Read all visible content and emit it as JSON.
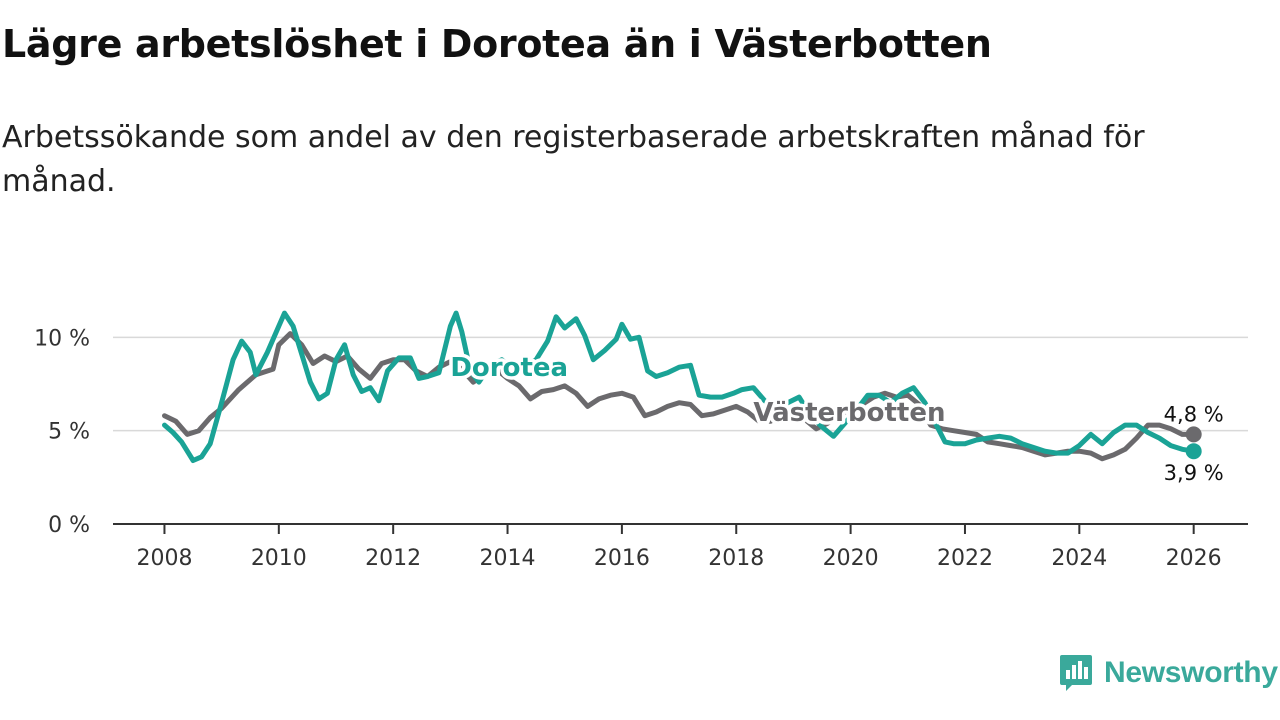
{
  "title": "Lägre arbetslöshet i Dorotea än i Västerbotten",
  "subtitle": "Arbetssökande som andel av den registerbaserade arbetskraften månad för månad.",
  "brand": {
    "name": "Newsworthy",
    "icon": "newsworthy-logo-icon",
    "color": "#3aa99b"
  },
  "chart_data": {
    "type": "line",
    "title": "Lägre arbetslöshet i Dorotea än i Västerbotten",
    "xlabel": "",
    "ylabel": "",
    "xlim": [
      2007.1,
      2026.95
    ],
    "ylim": [
      0,
      12
    ],
    "x_ticks": [
      2008,
      2010,
      2012,
      2014,
      2016,
      2018,
      2020,
      2022,
      2024,
      2026
    ],
    "y_ticks": [
      {
        "value": 0,
        "label": "0 %"
      },
      {
        "value": 5,
        "label": "5 %"
      },
      {
        "value": 10,
        "label": "10 %"
      }
    ],
    "grid": "horizontal",
    "end_labels": {
      "top": "4,8 %",
      "bottom": "3,9 %"
    },
    "series": [
      {
        "name": "Västerbotten",
        "color": "#6b6a6d",
        "points": [
          [
            2008.0,
            5.8
          ],
          [
            2008.2,
            5.5
          ],
          [
            2008.4,
            4.8
          ],
          [
            2008.6,
            5.0
          ],
          [
            2008.8,
            5.7
          ],
          [
            2009.0,
            6.2
          ],
          [
            2009.3,
            7.2
          ],
          [
            2009.6,
            8.0
          ],
          [
            2009.9,
            8.3
          ],
          [
            2010.0,
            9.6
          ],
          [
            2010.2,
            10.2
          ],
          [
            2010.4,
            9.6
          ],
          [
            2010.6,
            8.6
          ],
          [
            2010.8,
            9.0
          ],
          [
            2011.0,
            8.7
          ],
          [
            2011.2,
            9.0
          ],
          [
            2011.4,
            8.3
          ],
          [
            2011.6,
            7.8
          ],
          [
            2011.8,
            8.6
          ],
          [
            2012.0,
            8.8
          ],
          [
            2012.2,
            8.8
          ],
          [
            2012.4,
            8.2
          ],
          [
            2012.6,
            7.9
          ],
          [
            2012.8,
            8.4
          ],
          [
            2013.0,
            8.7
          ],
          [
            2013.2,
            8.3
          ],
          [
            2013.4,
            7.6
          ],
          [
            2013.6,
            8.0
          ],
          [
            2013.8,
            8.3
          ],
          [
            2014.0,
            7.8
          ],
          [
            2014.2,
            7.4
          ],
          [
            2014.4,
            6.7
          ],
          [
            2014.6,
            7.1
          ],
          [
            2014.8,
            7.2
          ],
          [
            2015.0,
            7.4
          ],
          [
            2015.2,
            7.0
          ],
          [
            2015.4,
            6.3
          ],
          [
            2015.6,
            6.7
          ],
          [
            2015.8,
            6.9
          ],
          [
            2016.0,
            7.0
          ],
          [
            2016.2,
            6.8
          ],
          [
            2016.4,
            5.8
          ],
          [
            2016.6,
            6.0
          ],
          [
            2016.8,
            6.3
          ],
          [
            2017.0,
            6.5
          ],
          [
            2017.2,
            6.4
          ],
          [
            2017.4,
            5.8
          ],
          [
            2017.6,
            5.9
          ],
          [
            2017.8,
            6.1
          ],
          [
            2018.0,
            6.3
          ],
          [
            2018.2,
            6.0
          ],
          [
            2018.4,
            5.5
          ],
          [
            2018.6,
            5.5
          ],
          [
            2018.8,
            5.9
          ],
          [
            2019.0,
            6.0
          ],
          [
            2019.2,
            5.6
          ],
          [
            2019.4,
            5.1
          ],
          [
            2019.6,
            5.4
          ],
          [
            2019.8,
            5.8
          ],
          [
            2020.0,
            6.2
          ],
          [
            2020.2,
            6.4
          ],
          [
            2020.4,
            6.8
          ],
          [
            2020.6,
            7.0
          ],
          [
            2020.8,
            6.8
          ],
          [
            2021.0,
            6.9
          ],
          [
            2021.2,
            6.4
          ],
          [
            2021.4,
            5.3
          ],
          [
            2021.6,
            5.1
          ],
          [
            2021.8,
            5.0
          ],
          [
            2022.0,
            4.9
          ],
          [
            2022.2,
            4.8
          ],
          [
            2022.4,
            4.4
          ],
          [
            2022.6,
            4.3
          ],
          [
            2022.8,
            4.2
          ],
          [
            2023.0,
            4.1
          ],
          [
            2023.2,
            3.9
          ],
          [
            2023.4,
            3.7
          ],
          [
            2023.6,
            3.8
          ],
          [
            2023.8,
            3.9
          ],
          [
            2024.0,
            3.9
          ],
          [
            2024.2,
            3.8
          ],
          [
            2024.4,
            3.5
          ],
          [
            2024.6,
            3.7
          ],
          [
            2024.8,
            4.0
          ],
          [
            2025.0,
            4.6
          ],
          [
            2025.2,
            5.3
          ],
          [
            2025.4,
            5.3
          ],
          [
            2025.6,
            5.1
          ],
          [
            2025.8,
            4.8
          ],
          [
            2026.0,
            4.8
          ]
        ]
      },
      {
        "name": "Dorotea",
        "color": "#1aa396",
        "points": [
          [
            2008.0,
            5.3
          ],
          [
            2008.15,
            4.9
          ],
          [
            2008.3,
            4.4
          ],
          [
            2008.5,
            3.4
          ],
          [
            2008.65,
            3.6
          ],
          [
            2008.8,
            4.3
          ],
          [
            2009.0,
            6.5
          ],
          [
            2009.2,
            8.8
          ],
          [
            2009.35,
            9.8
          ],
          [
            2009.5,
            9.2
          ],
          [
            2009.6,
            8.0
          ],
          [
            2009.8,
            9.2
          ],
          [
            2010.0,
            10.6
          ],
          [
            2010.1,
            11.3
          ],
          [
            2010.25,
            10.6
          ],
          [
            2010.4,
            9.1
          ],
          [
            2010.55,
            7.6
          ],
          [
            2010.7,
            6.7
          ],
          [
            2010.85,
            7.0
          ],
          [
            2011.0,
            8.8
          ],
          [
            2011.15,
            9.6
          ],
          [
            2011.3,
            8.0
          ],
          [
            2011.45,
            7.1
          ],
          [
            2011.6,
            7.3
          ],
          [
            2011.75,
            6.6
          ],
          [
            2011.9,
            8.2
          ],
          [
            2012.1,
            8.9
          ],
          [
            2012.3,
            8.9
          ],
          [
            2012.45,
            7.8
          ],
          [
            2012.6,
            7.9
          ],
          [
            2012.8,
            8.1
          ],
          [
            2013.0,
            10.6
          ],
          [
            2013.1,
            11.3
          ],
          [
            2013.2,
            10.3
          ],
          [
            2013.35,
            8.2
          ],
          [
            2013.5,
            7.6
          ],
          [
            2013.7,
            8.5
          ],
          [
            2013.9,
            8.8
          ],
          [
            2014.1,
            8.2
          ],
          [
            2014.3,
            8.5
          ],
          [
            2014.5,
            8.8
          ],
          [
            2014.7,
            9.8
          ],
          [
            2014.85,
            11.1
          ],
          [
            2015.0,
            10.5
          ],
          [
            2015.2,
            11.0
          ],
          [
            2015.35,
            10.1
          ],
          [
            2015.5,
            8.8
          ],
          [
            2015.7,
            9.3
          ],
          [
            2015.9,
            9.9
          ],
          [
            2016.0,
            10.7
          ],
          [
            2016.15,
            9.9
          ],
          [
            2016.3,
            10.0
          ],
          [
            2016.45,
            8.2
          ],
          [
            2016.6,
            7.9
          ],
          [
            2016.8,
            8.1
          ],
          [
            2017.0,
            8.4
          ],
          [
            2017.2,
            8.5
          ],
          [
            2017.35,
            6.9
          ],
          [
            2017.55,
            6.8
          ],
          [
            2017.75,
            6.8
          ],
          [
            2017.95,
            7.0
          ],
          [
            2018.1,
            7.2
          ],
          [
            2018.3,
            7.3
          ],
          [
            2018.5,
            6.6
          ],
          [
            2018.7,
            6.1
          ],
          [
            2018.9,
            6.5
          ],
          [
            2019.1,
            6.8
          ],
          [
            2019.3,
            5.8
          ],
          [
            2019.5,
            5.2
          ],
          [
            2019.7,
            4.7
          ],
          [
            2019.9,
            5.4
          ],
          [
            2020.1,
            6.1
          ],
          [
            2020.3,
            6.9
          ],
          [
            2020.5,
            6.9
          ],
          [
            2020.7,
            6.5
          ],
          [
            2020.9,
            7.0
          ],
          [
            2021.1,
            7.3
          ],
          [
            2021.3,
            6.5
          ],
          [
            2021.5,
            5.3
          ],
          [
            2021.65,
            4.4
          ],
          [
            2021.8,
            4.3
          ],
          [
            2022.0,
            4.3
          ],
          [
            2022.2,
            4.5
          ],
          [
            2022.4,
            4.6
          ],
          [
            2022.6,
            4.7
          ],
          [
            2022.8,
            4.6
          ],
          [
            2023.0,
            4.3
          ],
          [
            2023.2,
            4.1
          ],
          [
            2023.4,
            3.9
          ],
          [
            2023.6,
            3.8
          ],
          [
            2023.8,
            3.8
          ],
          [
            2024.0,
            4.2
          ],
          [
            2024.2,
            4.8
          ],
          [
            2024.4,
            4.3
          ],
          [
            2024.6,
            4.9
          ],
          [
            2024.8,
            5.3
          ],
          [
            2025.0,
            5.3
          ],
          [
            2025.2,
            4.9
          ],
          [
            2025.4,
            4.6
          ],
          [
            2025.6,
            4.2
          ],
          [
            2025.8,
            4.0
          ],
          [
            2026.0,
            3.9
          ]
        ]
      }
    ],
    "annotations": [
      {
        "text": "Dorotea",
        "series": "Dorotea",
        "x": 2013.0,
        "y": 8.4
      },
      {
        "text": "Västerbotten",
        "series": "Västerbotten",
        "x": 2018.3,
        "y": 6.0
      }
    ]
  }
}
